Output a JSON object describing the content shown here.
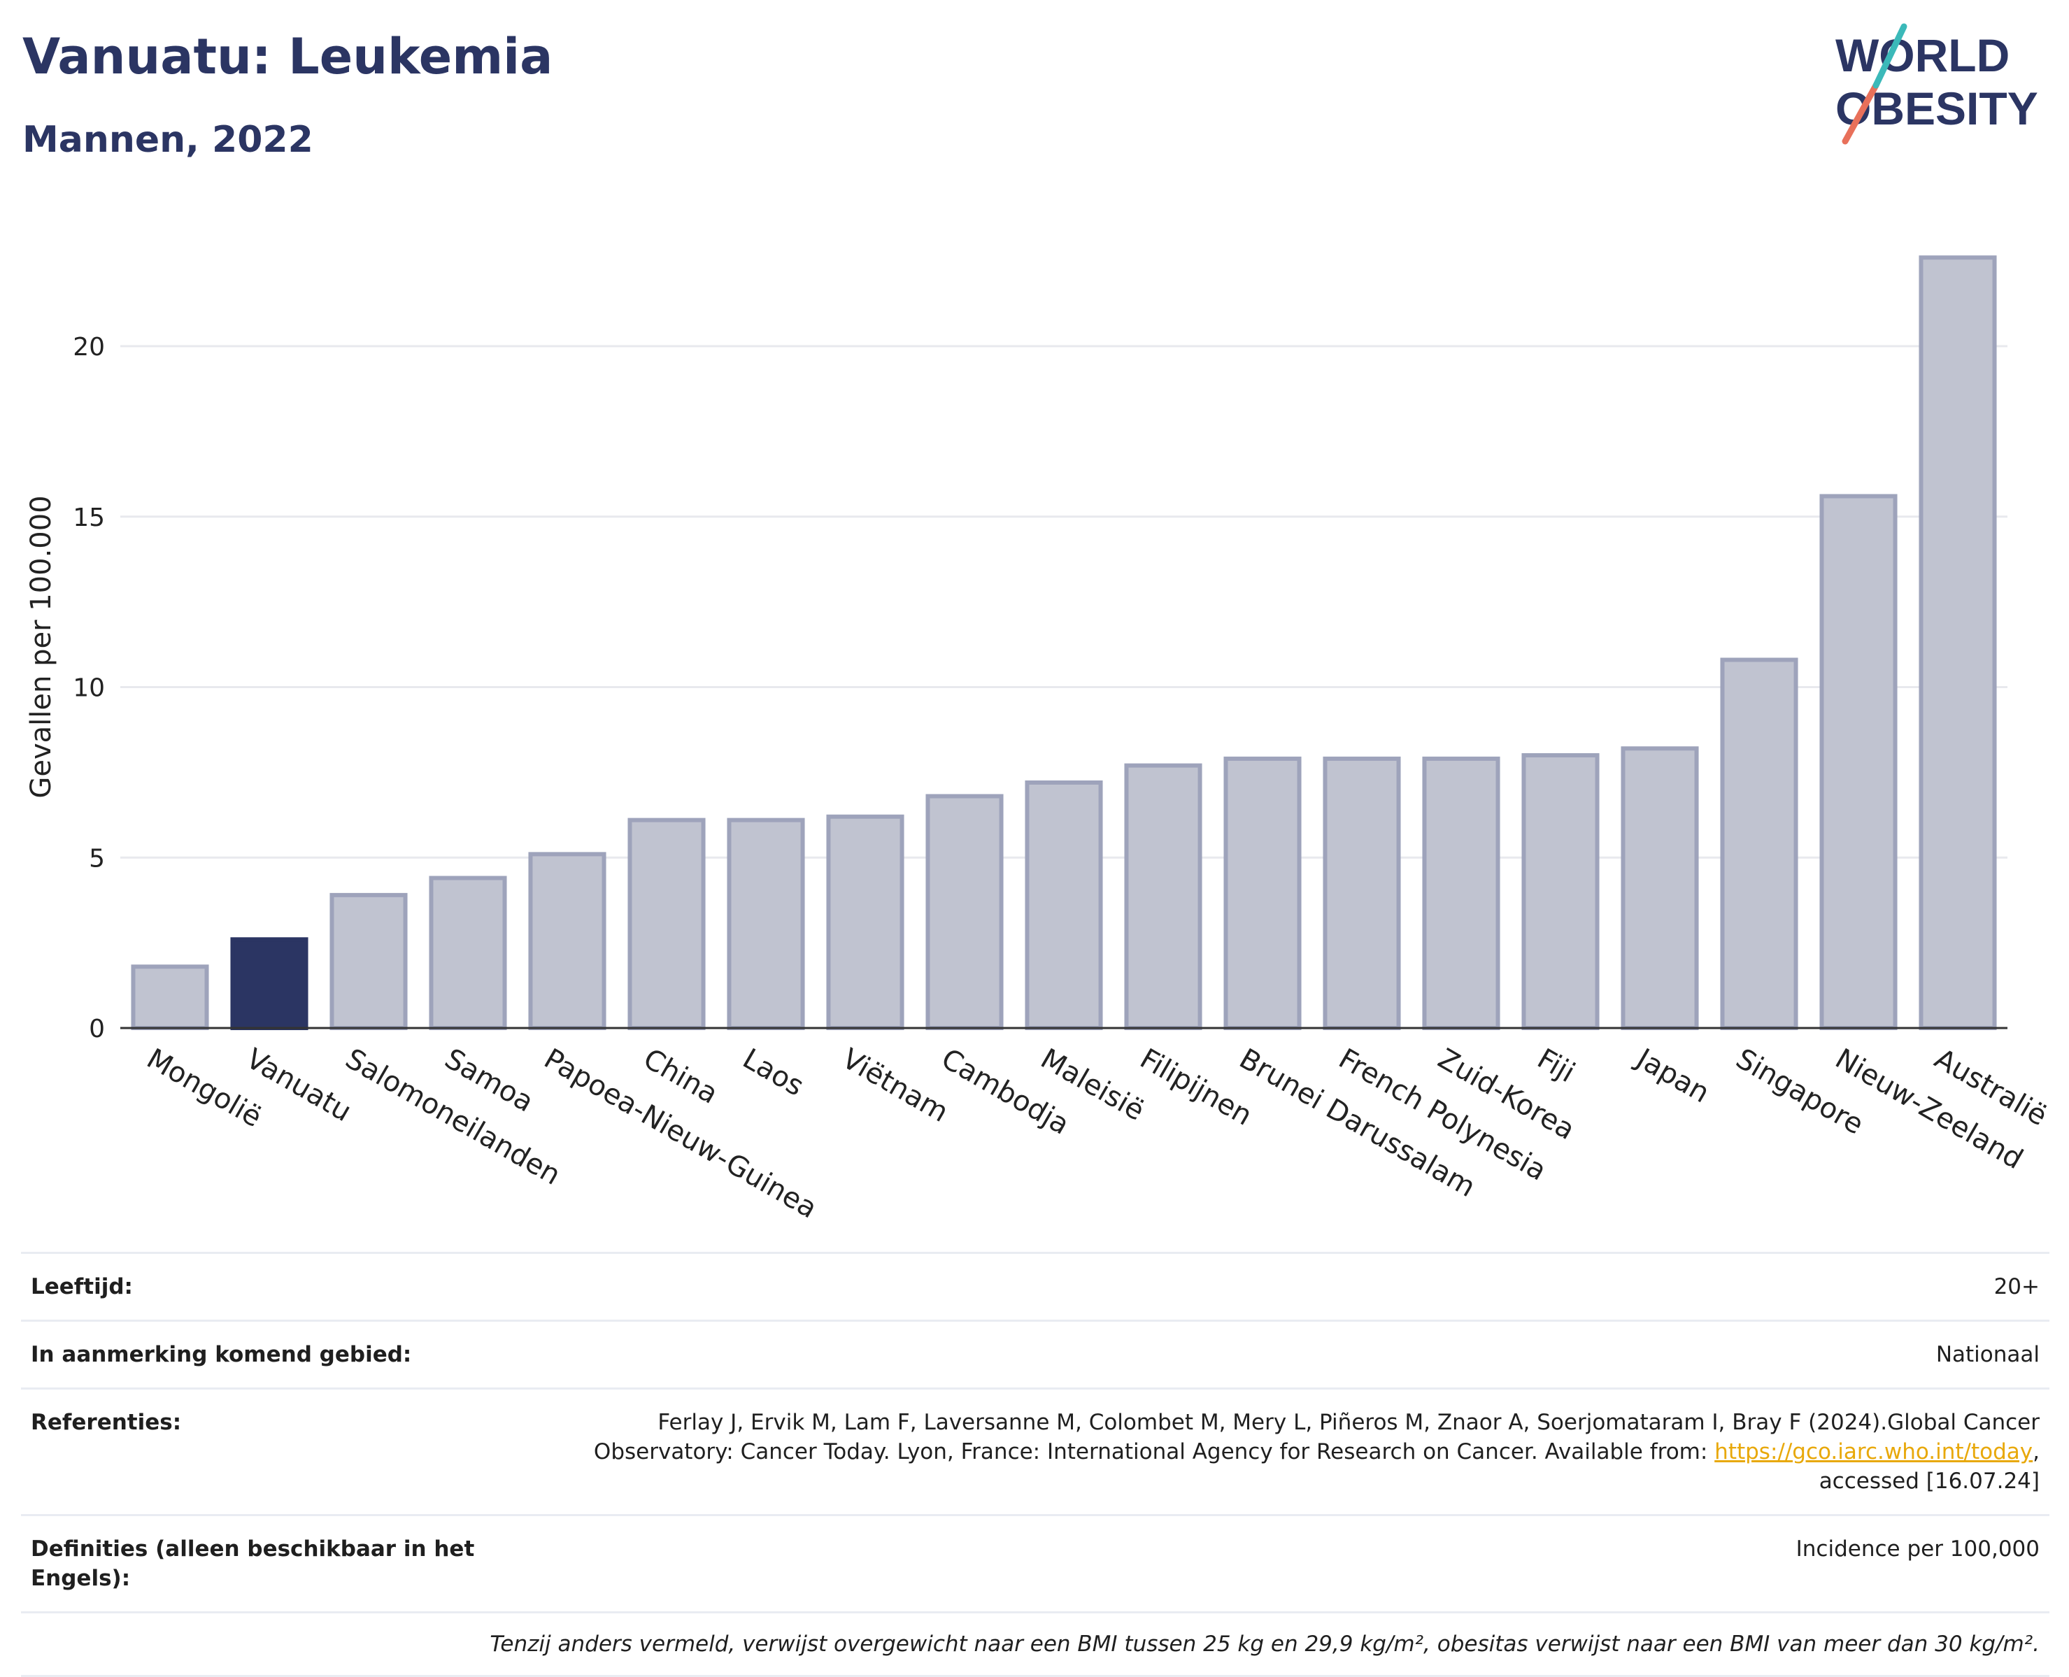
{
  "header": {
    "title": "Vanuatu: Leukemia",
    "subtitle": "Mannen, 2022"
  },
  "logo": {
    "line1": "WORLD",
    "line2": "OBESITY"
  },
  "colors": {
    "highlight": "#2b3563",
    "bar": "#c0c3d0",
    "bar_stroke": "#9ea3bb",
    "accent_teal": "#3bb9b9",
    "accent_red": "#e8705a"
  },
  "chart_data": {
    "type": "bar",
    "categories": [
      "Mongolië",
      "Vanuatu",
      "Salomoneilanden",
      "Samoa",
      "Papoea-Nieuw-Guinea",
      "China",
      "Laos",
      "Viëtnam",
      "Cambodja",
      "Maleisië",
      "Filipijnen",
      "Brunei Darussalam",
      "French Polynesia",
      "Zuid-Korea",
      "Fiji",
      "Japan",
      "Singapore",
      "Nieuw-Zeeland",
      "Australië"
    ],
    "values": [
      1.8,
      2.6,
      3.9,
      4.4,
      5.1,
      6.1,
      6.1,
      6.2,
      6.8,
      7.2,
      7.7,
      7.9,
      7.9,
      7.9,
      8.0,
      8.2,
      10.8,
      15.6,
      22.6
    ],
    "highlight": "Vanuatu",
    "ylabel": "Gevallen per 100.000",
    "xlabel": "",
    "ylim": [
      0,
      24
    ],
    "yticks": [
      0,
      5,
      10,
      15,
      20
    ],
    "grid": true
  },
  "info": {
    "age_label": "Leeftijd:",
    "age_value": "20+",
    "area_label": "In aanmerking komend gebied:",
    "area_value": "Nationaal",
    "ref_label": "Referenties:",
    "ref_text_1": "Ferlay J, Ervik M, Lam F, Laversanne M, Colombet M, Mery L, Piñeros M, Znaor A, Soerjomataram I, Bray F (2024).Global Cancer Observatory: Cancer Today. Lyon, France: International Agency for Research on Cancer. Available from: ",
    "ref_link": "https://gco.iarc.who.int/today",
    "ref_text_2": ", accessed [16.07.24]",
    "def_label": "Definities (alleen beschikbaar in het Engels):",
    "def_value": "Incidence per 100,000",
    "note": "Tenzij anders vermeld, verwijst overgewicht naar een BMI tussen 25 kg en 29,9 kg/m², obesitas verwijst naar een BMI van meer dan 30 kg/m²."
  }
}
